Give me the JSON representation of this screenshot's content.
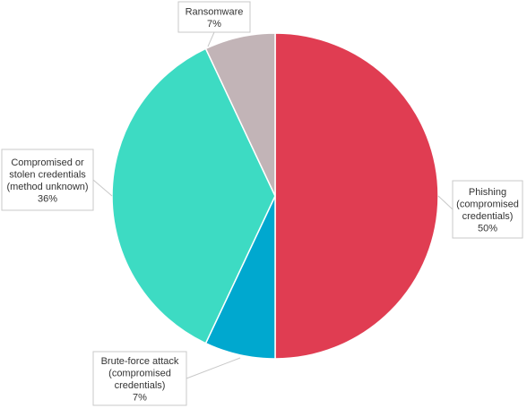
{
  "chart_data": {
    "type": "pie",
    "title": "",
    "start_angle_deg": 0,
    "direction": "clockwise",
    "slices": [
      {
        "name": "Phishing (compromised credentials)",
        "lines": [
          "Phishing",
          "(compromised",
          "credentials)"
        ],
        "value": 50,
        "value_label": "50%",
        "color": "#e03d52"
      },
      {
        "name": "Brute-force attack (compromised credentials)",
        "lines": [
          "Brute-force attack",
          "(compromised",
          "credentials)"
        ],
        "value": 7,
        "value_label": "7%",
        "color": "#00a8cf"
      },
      {
        "name": "Compromised or stolen credentials (method unknown)",
        "lines": [
          "Compromised or",
          "stolen credentials",
          "(method unknown)"
        ],
        "value": 36,
        "value_label": "36%",
        "color": "#3ddbc3"
      },
      {
        "name": "Ransomware",
        "lines": [
          "Ransomware"
        ],
        "value": 7,
        "value_label": "7%",
        "color": "#c2b4b7"
      }
    ]
  }
}
